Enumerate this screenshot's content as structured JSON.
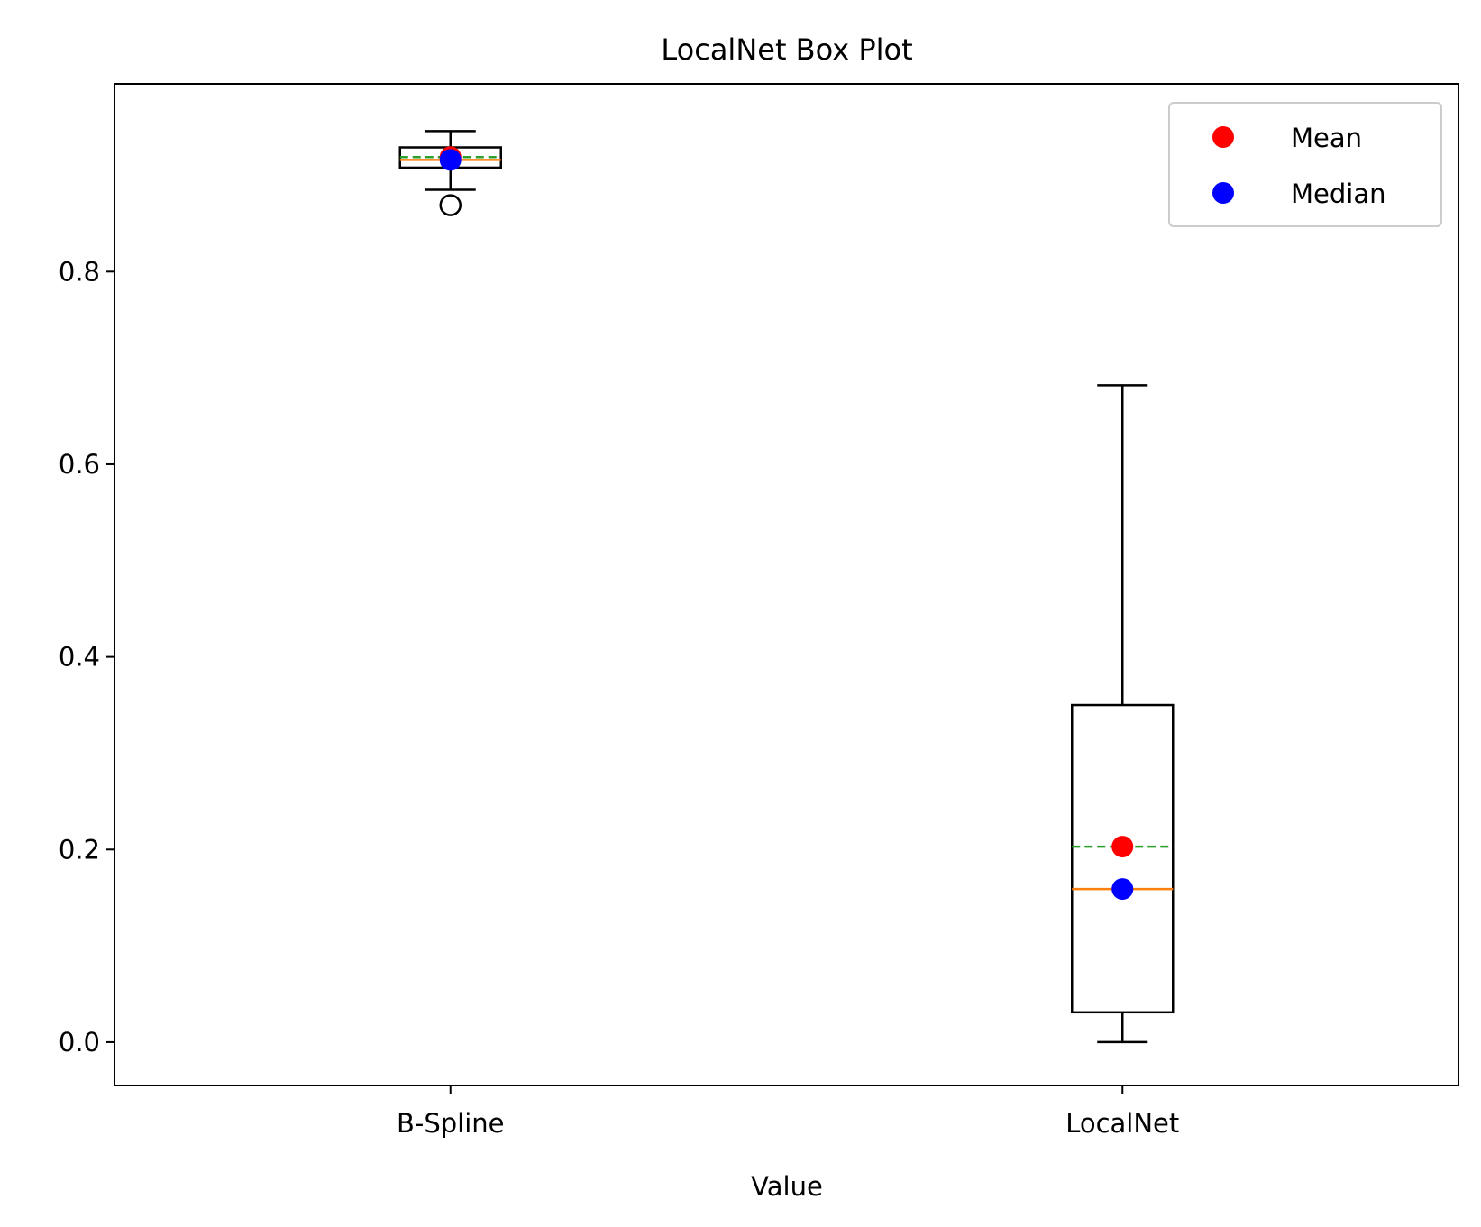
{
  "chart_data": {
    "type": "box",
    "title": "LocalNet Box Plot",
    "xlabel": "Value",
    "ylabel": "",
    "ylim": [
      -0.045,
      0.995
    ],
    "yticks": [
      0.0,
      0.2,
      0.4,
      0.6,
      0.8
    ],
    "ytick_labels": [
      "0.0",
      "0.2",
      "0.4",
      "0.6",
      "0.8"
    ],
    "categories": [
      "B-Spline",
      "LocalNet"
    ],
    "boxes": [
      {
        "name": "B-Spline",
        "whisker_low": 0.885,
        "q1": 0.908,
        "median": 0.916,
        "q3": 0.929,
        "whisker_high": 0.946,
        "mean": 0.919,
        "outliers": [
          0.869
        ]
      },
      {
        "name": "LocalNet",
        "whisker_low": 0.0,
        "q1": 0.031,
        "median": 0.159,
        "q3": 0.35,
        "whisker_high": 0.682,
        "mean": 0.203,
        "outliers": []
      }
    ],
    "legend": {
      "position": "top-right",
      "entries": [
        {
          "label": "Mean",
          "color": "#ff0000"
        },
        {
          "label": "Median",
          "color": "#0000ff"
        }
      ]
    },
    "colors": {
      "median_line": "#ff7f0e",
      "mean_line": "#2ca02c",
      "mean_marker": "#ff0000",
      "median_marker": "#0000ff",
      "box": "#000000"
    },
    "grid": false
  }
}
